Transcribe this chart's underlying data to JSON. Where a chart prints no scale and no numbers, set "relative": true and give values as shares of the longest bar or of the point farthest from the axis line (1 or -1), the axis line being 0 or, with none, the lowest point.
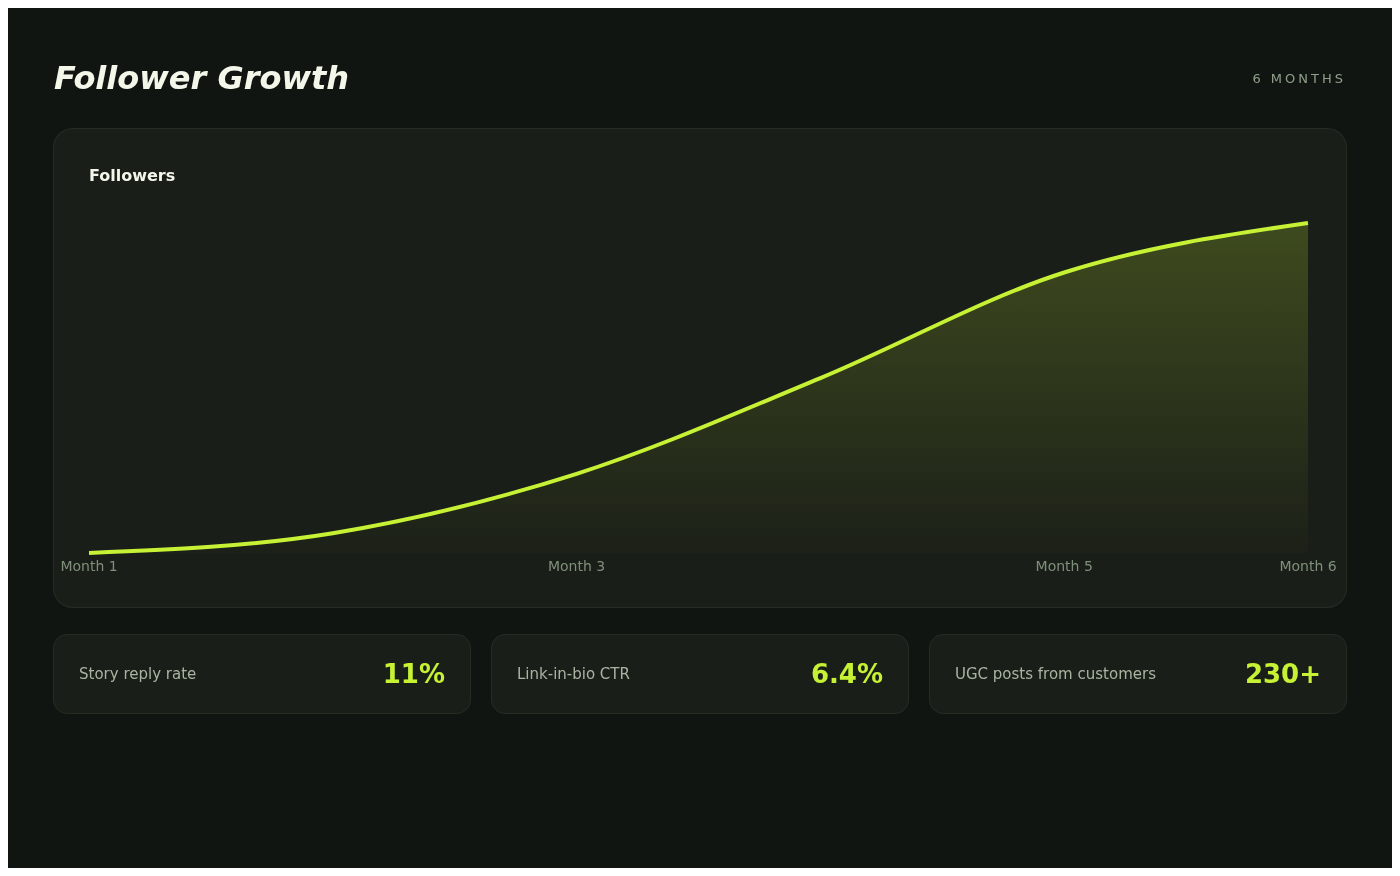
{
  "chart_data": [
    {
      "type": "area",
      "title": "Follower Growth",
      "subtitle": "6 MONTHS",
      "ylabel": "Followers",
      "relative": true,
      "categories": [
        "Month 1",
        null,
        "Month 3",
        null,
        "Month 5",
        "Month 6"
      ],
      "series": [
        {
          "color": "#c6f135",
          "values": [
            0,
            0.06,
            0.24,
            0.53,
            0.85,
            1
          ]
        }
      ],
      "grid": false,
      "legend": false,
      "marker": "none"
    },
    {
      "type": "other",
      "title": "Story reply rate",
      "annotations": [
        "11%"
      ]
    },
    {
      "type": "other",
      "title": "Link-in-bio CTR",
      "annotations": [
        "6.4%"
      ]
    },
    {
      "type": "other",
      "title": "UGC posts from customers",
      "annotations": [
        "230+"
      ]
    }
  ]
}
